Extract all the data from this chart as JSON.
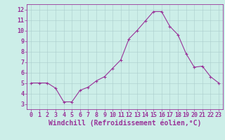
{
  "x": [
    0,
    1,
    2,
    3,
    4,
    5,
    6,
    7,
    8,
    9,
    10,
    11,
    12,
    13,
    14,
    15,
    16,
    17,
    18,
    19,
    20,
    21,
    22,
    23
  ],
  "y": [
    5.0,
    5.0,
    5.0,
    4.5,
    3.2,
    3.2,
    4.3,
    4.6,
    5.2,
    5.6,
    6.4,
    7.2,
    9.2,
    10.0,
    10.9,
    11.8,
    11.8,
    10.4,
    9.6,
    7.8,
    6.5,
    6.6,
    5.6,
    5.0
  ],
  "line_color": "#993399",
  "marker": "+",
  "marker_color": "#993399",
  "xlabel": "Windchill (Refroidissement éolien,°C)",
  "xlabel_color": "#993399",
  "xlabel_fontsize": 7,
  "tick_color": "#993399",
  "tick_labelsize": 6,
  "ylim": [
    2.5,
    12.5
  ],
  "xlim": [
    -0.5,
    23.5
  ],
  "yticks": [
    3,
    4,
    5,
    6,
    7,
    8,
    9,
    10,
    11,
    12
  ],
  "xticks": [
    0,
    1,
    2,
    3,
    4,
    5,
    6,
    7,
    8,
    9,
    10,
    11,
    12,
    13,
    14,
    15,
    16,
    17,
    18,
    19,
    20,
    21,
    22,
    23
  ],
  "background_color": "#cceee8",
  "grid_color": "#aacccc",
  "spine_color": "#993399",
  "linewidth": 0.8,
  "markersize": 3,
  "fig_width": 3.2,
  "fig_height": 2.0,
  "dpi": 100
}
